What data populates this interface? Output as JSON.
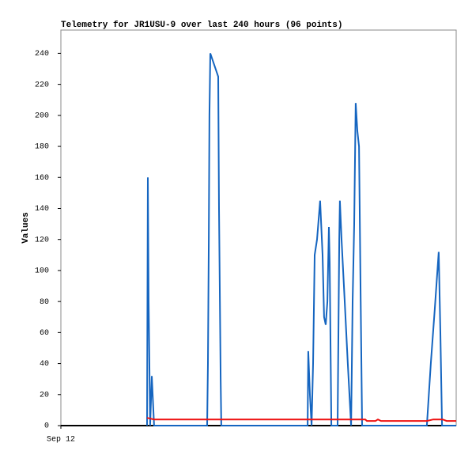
{
  "chart_data": {
    "type": "line",
    "title": "Telemetry for JR1USU-9 over last 240 hours (96 points)",
    "y_label": "Values",
    "xlim": [
      0,
      240
    ],
    "xticks": [
      {
        "value": 0,
        "label": "Sep 12"
      }
    ],
    "ylim": [
      0,
      255
    ],
    "yticks": [
      0,
      20,
      40,
      60,
      80,
      100,
      120,
      140,
      160,
      180,
      200,
      220,
      240
    ],
    "series": [
      {
        "color": "#1565c0",
        "x": [
          52.3,
          52.8,
          53.3,
          54.2,
          55.2,
          56.6,
          88.8,
          89.3,
          89.8,
          90.2,
          90.7,
          95.5,
          96.0,
          97.0,
          97.4,
          149.8,
          150.2,
          151.2,
          152.2,
          153.1,
          154.1,
          155.5,
          157.4,
          158.9,
          159.8,
          160.8,
          161.8,
          162.7,
          163.2,
          164.2,
          168.0,
          169.0,
          169.4,
          170.4,
          172.3,
          174.2,
          176.2,
          177.1,
          178.1,
          179.0,
          180.0,
          181.0,
          181.9,
          182.9,
          222.2,
          224.6,
          227.0,
          229.4,
          230.4,
          231.4,
          240
        ],
        "values": [
          0,
          160,
          80,
          0,
          32,
          0,
          0,
          40,
          120,
          200,
          240,
          225,
          140,
          30,
          0,
          0,
          48,
          20,
          0,
          40,
          110,
          120,
          145,
          110,
          70,
          65,
          80,
          128,
          105,
          0,
          0,
          120,
          145,
          120,
          80,
          40,
          0,
          80,
          130,
          208,
          190,
          180,
          90,
          0,
          0,
          40,
          75,
          112,
          60,
          0,
          0
        ]
      },
      {
        "color": "#ee1111",
        "x": [
          52.3,
          56.6,
          184.8,
          185.8,
          191.0,
          192.5,
          194.4,
          222.2,
          226.1,
          231.8,
          234.2,
          240
        ],
        "values": [
          5,
          4,
          4,
          3,
          3,
          4,
          3,
          3,
          4,
          4,
          3,
          3
        ]
      }
    ]
  }
}
